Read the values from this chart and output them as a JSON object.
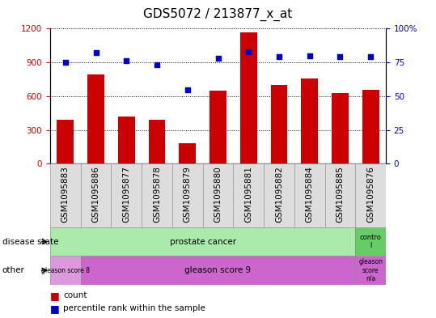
{
  "title": "GDS5072 / 213877_x_at",
  "samples": [
    "GSM1095883",
    "GSM1095886",
    "GSM1095877",
    "GSM1095878",
    "GSM1095879",
    "GSM1095880",
    "GSM1095881",
    "GSM1095882",
    "GSM1095884",
    "GSM1095885",
    "GSM1095876"
  ],
  "counts": [
    390,
    790,
    420,
    390,
    185,
    650,
    1170,
    700,
    755,
    630,
    660
  ],
  "percentiles": [
    75,
    82,
    76,
    73,
    55,
    78,
    83,
    79,
    80,
    79,
    79
  ],
  "ylim_left": [
    0,
    1200
  ],
  "ylim_right": [
    0,
    100
  ],
  "yticks_left": [
    0,
    300,
    600,
    900,
    1200
  ],
  "yticks_right": [
    0,
    25,
    50,
    75,
    100
  ],
  "bar_color": "#cc0000",
  "scatter_color": "#0000cc",
  "tick_label_fontsize": 7.5,
  "title_fontsize": 11,
  "prostate_color": "#aaeaaa",
  "control_color": "#66cc66",
  "gleason8_color": "#dd99dd",
  "gleason9_color": "#cc66cc",
  "gleasonna_color": "#cc66cc",
  "cell_bg": "#dddddd",
  "cell_edge": "#999999"
}
